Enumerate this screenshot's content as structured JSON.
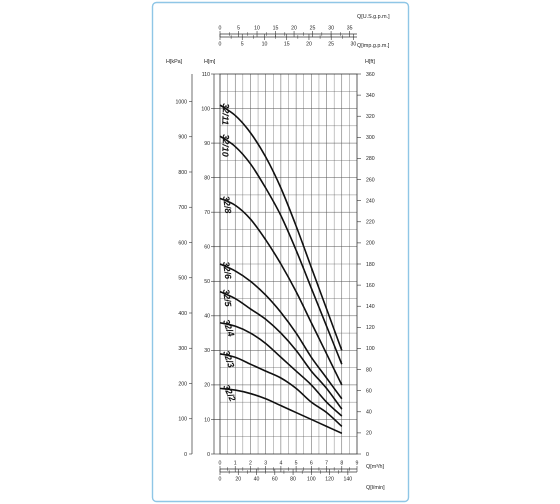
{
  "chart_data": {
    "type": "line",
    "title": "",
    "axes": {
      "top_usgpm": {
        "label": "Q[U.S.g.p.m.]",
        "ticks": [
          "0",
          "5",
          "10",
          "15",
          "20",
          "25",
          "30",
          "35"
        ],
        "range": [
          0,
          37
        ]
      },
      "top_impgpm": {
        "label": "Q[imp.g.p.m.]",
        "ticks": [
          "0",
          "5",
          "10",
          "15",
          "20",
          "25",
          "30"
        ],
        "range": [
          0,
          30.8
        ]
      },
      "left_kpa": {
        "label": "H[kPa]",
        "ticks": [
          "0",
          "100",
          "200",
          "300",
          "400",
          "500",
          "600",
          "700",
          "800",
          "900",
          "1000"
        ],
        "range": [
          0,
          1078
        ]
      },
      "left_m": {
        "label": "H[m]",
        "ticks": [
          "0",
          "10",
          "20",
          "30",
          "40",
          "50",
          "60",
          "70",
          "80",
          "90",
          "100",
          "110"
        ],
        "range": [
          0,
          110
        ]
      },
      "right_ft": {
        "label": "H[ft]",
        "ticks": [
          "0",
          "20",
          "40",
          "60",
          "80",
          "100",
          "120",
          "140",
          "160",
          "180",
          "200",
          "220",
          "240",
          "260",
          "280",
          "300",
          "320",
          "340",
          "360"
        ],
        "range": [
          0,
          360
        ]
      },
      "bottom_m3h": {
        "label": "Q[m³/h]",
        "ticks": [
          "0",
          "1",
          "2",
          "3",
          "4",
          "5",
          "6",
          "7",
          "8",
          "9"
        ],
        "range": [
          0,
          9
        ]
      },
      "bottom_lmin": {
        "label": "Q[l/min]",
        "ticks": [
          "0",
          "20",
          "40",
          "60",
          "80",
          "100",
          "120",
          "140"
        ],
        "range": [
          0,
          150
        ]
      }
    },
    "x_unit": "m3/h",
    "y_unit": "m",
    "xlim": [
      0,
      9
    ],
    "ylim": [
      0,
      110
    ],
    "grid": true,
    "series": [
      {
        "name": "32/11",
        "x": [
          0,
          1,
          2,
          3,
          4,
          5,
          6,
          7,
          8
        ],
        "y": [
          101,
          98,
          93,
          86,
          77,
          66,
          54,
          42,
          30
        ]
      },
      {
        "name": "32/10",
        "x": [
          0,
          1,
          2,
          3,
          4,
          5,
          6,
          7,
          8
        ],
        "y": [
          92,
          89,
          84,
          77,
          69,
          59,
          48,
          37,
          26
        ]
      },
      {
        "name": "32/8",
        "x": [
          0,
          1,
          2,
          3,
          4,
          5,
          6,
          7,
          8
        ],
        "y": [
          74,
          72,
          68,
          62,
          55,
          47,
          38,
          29,
          20
        ]
      },
      {
        "name": "32/6",
        "x": [
          0,
          1,
          2,
          3,
          4,
          5,
          6,
          7,
          8
        ],
        "y": [
          55,
          53,
          50,
          46,
          41,
          35,
          28,
          22,
          16
        ]
      },
      {
        "name": "32/5",
        "x": [
          0,
          1,
          2,
          3,
          4,
          5,
          6,
          7,
          8
        ],
        "y": [
          47,
          45,
          42,
          39,
          35,
          30,
          24,
          19,
          13
        ]
      },
      {
        "name": "32/4",
        "x": [
          0,
          1,
          2,
          3,
          4,
          5,
          6,
          7,
          8
        ],
        "y": [
          38,
          37,
          35,
          32,
          28,
          24,
          20,
          15,
          11
        ]
      },
      {
        "name": "32/3",
        "x": [
          0,
          1,
          2,
          3,
          4,
          5,
          6,
          7,
          8
        ],
        "y": [
          29,
          28,
          26,
          24,
          22,
          19,
          15,
          12,
          8
        ]
      },
      {
        "name": "32/2",
        "x": [
          0,
          1,
          2,
          3,
          4,
          5,
          6,
          7,
          8
        ],
        "y": [
          19,
          18.5,
          17.5,
          16,
          14,
          12,
          10,
          8,
          6
        ]
      }
    ]
  }
}
